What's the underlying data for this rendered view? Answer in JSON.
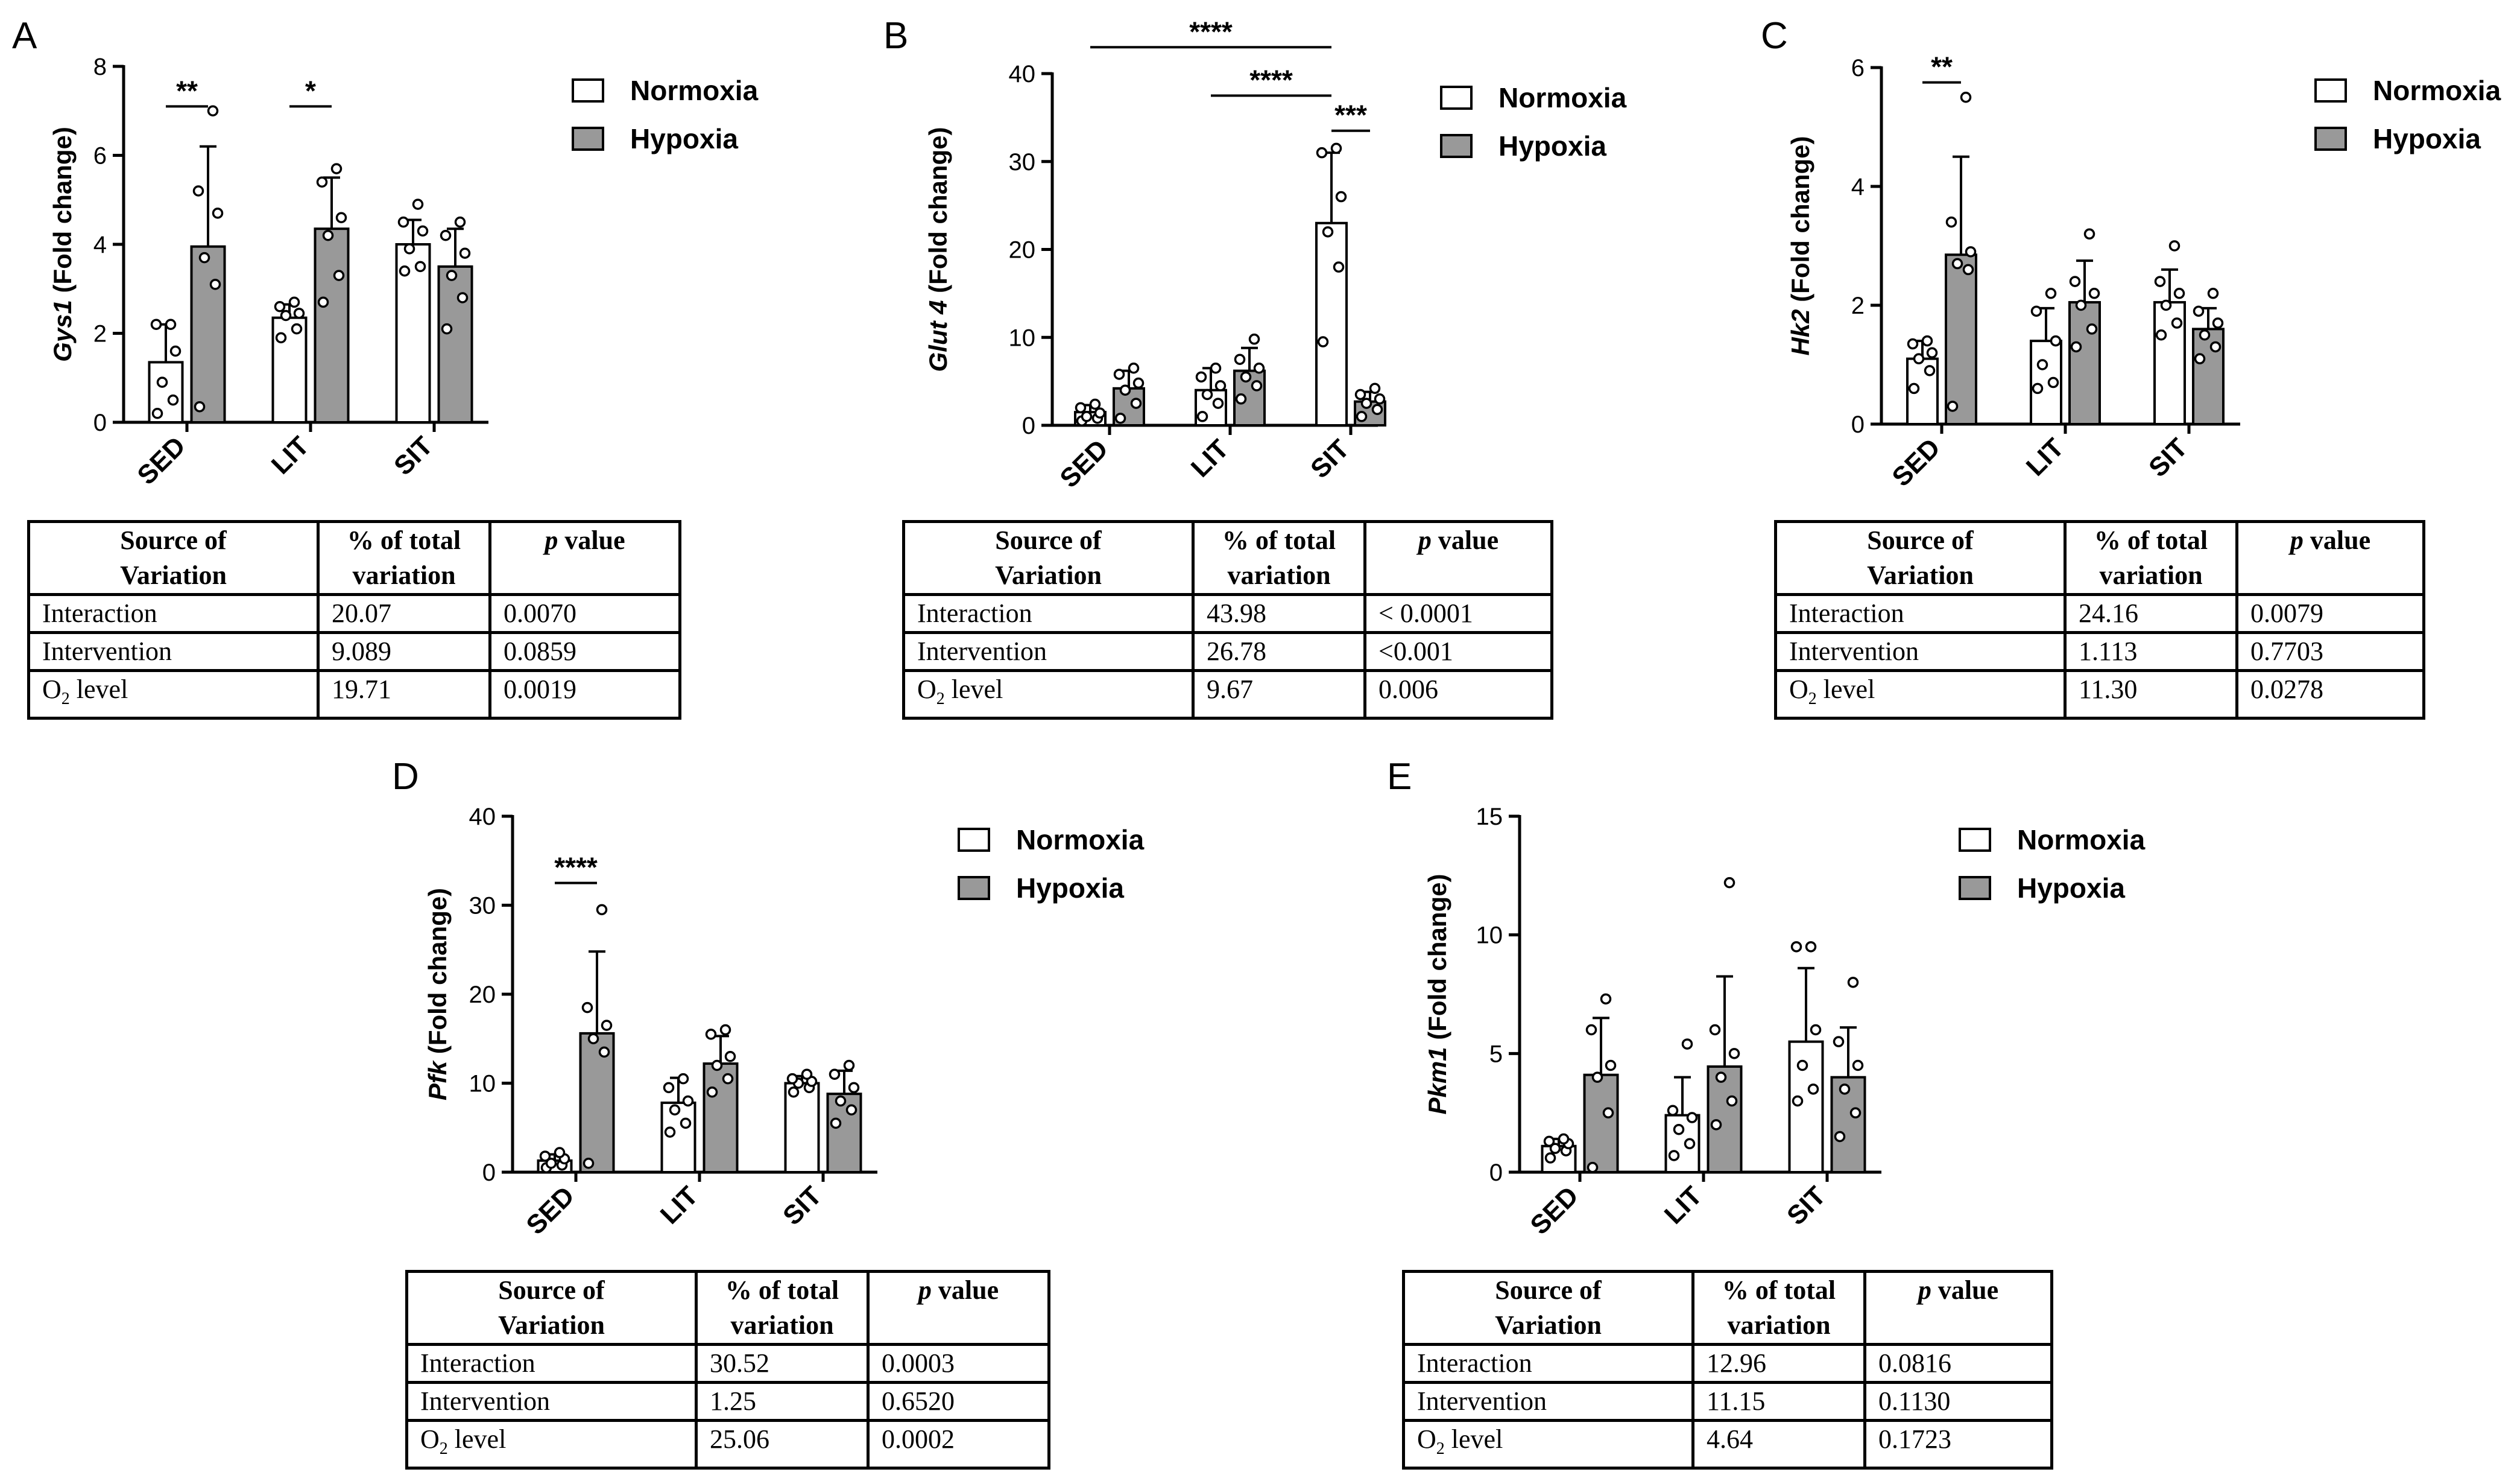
{
  "colors": {
    "normoxia": "#ffffff",
    "hypoxia": "#999999"
  },
  "legend": {
    "normoxia": "Normoxia",
    "hypoxia": "Hypoxia"
  },
  "table_header": {
    "source_a": "Source  of",
    "source_b": "Variation",
    "pct_a": "% of total",
    "pct_b": "variation",
    "p_italic": "p",
    "p_rest": " value"
  },
  "chart_data": [
    {
      "id": "A",
      "letter": "A",
      "type": "bar",
      "gene": "Gys1",
      "ylabel_rest": " (Fold change)",
      "ylim": [
        0,
        8
      ],
      "yticks": [
        0,
        2,
        4,
        6,
        8
      ],
      "categories": [
        "SED",
        "LIT",
        "SIT"
      ],
      "series": [
        {
          "name": "Normoxia",
          "values": [
            1.35,
            2.35,
            4.0
          ],
          "sd": [
            0.85,
            0.3,
            0.55
          ],
          "points": [
            [
              0.2,
              0.5,
              0.9,
              1.6,
              2.2,
              2.2
            ],
            [
              1.9,
              2.1,
              2.4,
              2.45,
              2.6,
              2.7
            ],
            [
              3.4,
              3.5,
              3.9,
              4.3,
              4.5,
              4.9
            ]
          ]
        },
        {
          "name": "Hypoxia",
          "values": [
            3.95,
            4.35,
            3.5
          ],
          "sd": [
            2.25,
            1.15,
            0.85
          ],
          "points": [
            [
              0.35,
              3.1,
              3.7,
              4.7,
              5.2,
              7.0
            ],
            [
              2.7,
              3.3,
              4.2,
              4.6,
              5.4,
              5.7
            ],
            [
              2.1,
              2.8,
              3.3,
              3.8,
              4.2,
              4.5
            ]
          ]
        }
      ],
      "significance": [
        {
          "label": "**",
          "from": "SED-Normoxia",
          "to": "SED-Hypoxia",
          "y": 7.1
        },
        {
          "label": "*",
          "from": "LIT-Normoxia",
          "to": "LIT-Hypoxia",
          "y": 7.1
        }
      ],
      "table": [
        {
          "source": "Interaction",
          "pct": "20.07",
          "p": "0.0070"
        },
        {
          "source": "Intervention",
          "pct": "9.089",
          "p": "0.0859"
        },
        {
          "source": "O2 level",
          "pct": "19.71",
          "p": "0.0019"
        }
      ]
    },
    {
      "id": "B",
      "letter": "B",
      "type": "bar",
      "gene": "Glut 4",
      "ylabel_rest": " (Fold change)",
      "ylim": [
        0,
        40
      ],
      "yticks": [
        0,
        10,
        20,
        30,
        40
      ],
      "categories": [
        "SED",
        "LIT",
        "SIT"
      ],
      "series": [
        {
          "name": "Normoxia",
          "values": [
            1.5,
            4.0,
            23.0
          ],
          "sd": [
            0.8,
            2.5,
            8.0
          ],
          "points": [
            [
              0.5,
              0.8,
              1.0,
              1.4,
              2.0,
              2.4
            ],
            [
              1.0,
              2.5,
              3.5,
              4.5,
              5.5,
              6.5
            ],
            [
              9.5,
              18.0,
              22.0,
              26.0,
              31.0,
              31.5
            ]
          ]
        },
        {
          "name": "Hypoxia",
          "values": [
            4.2,
            6.2,
            2.7
          ],
          "sd": [
            2.0,
            2.6,
            1.1
          ],
          "points": [
            [
              0.8,
              2.5,
              4.0,
              4.8,
              5.8,
              6.5
            ],
            [
              3.0,
              4.5,
              5.5,
              6.5,
              7.5,
              9.8
            ],
            [
              1.0,
              1.8,
              2.5,
              3.0,
              3.5,
              4.2
            ]
          ]
        }
      ],
      "significance": [
        {
          "label": "****",
          "from": "SED-Normoxia",
          "to": "SIT-Normoxia",
          "y": 43.0
        },
        {
          "label": "****",
          "from": "LIT-Normoxia",
          "to": "SIT-Normoxia",
          "y": 37.5
        },
        {
          "label": "***",
          "from": "SIT-Normoxia",
          "to": "SIT-Hypoxia",
          "y": 33.5
        }
      ],
      "table": [
        {
          "source": "Interaction",
          "pct": "43.98",
          "p": "< 0.0001"
        },
        {
          "source": "Intervention",
          "pct": "26.78",
          "p": "<0.001"
        },
        {
          "source": "O2 level",
          "pct": "9.67",
          "p": "0.006"
        }
      ]
    },
    {
      "id": "C",
      "letter": "C",
      "type": "bar",
      "gene": "Hk2",
      "ylabel_rest": " (Fold change)",
      "ylim": [
        0,
        6
      ],
      "yticks": [
        0,
        2,
        4,
        6
      ],
      "categories": [
        "SED",
        "LIT",
        "SIT"
      ],
      "series": [
        {
          "name": "Normoxia",
          "values": [
            1.1,
            1.4,
            2.05
          ],
          "sd": [
            0.3,
            0.55,
            0.55
          ],
          "points": [
            [
              0.6,
              0.9,
              1.1,
              1.2,
              1.35,
              1.4
            ],
            [
              0.6,
              0.7,
              1.0,
              1.4,
              1.9,
              2.2
            ],
            [
              1.5,
              1.7,
              2.0,
              2.2,
              2.4,
              3.0
            ]
          ]
        },
        {
          "name": "Hypoxia",
          "values": [
            2.85,
            2.05,
            1.6
          ],
          "sd": [
            1.65,
            0.7,
            0.35
          ],
          "points": [
            [
              0.3,
              2.6,
              2.7,
              2.9,
              3.4,
              5.5
            ],
            [
              1.3,
              1.6,
              2.0,
              2.2,
              2.4,
              3.2
            ],
            [
              1.1,
              1.3,
              1.5,
              1.7,
              1.9,
              2.2
            ]
          ]
        }
      ],
      "significance": [
        {
          "label": "**",
          "from": "SED-Normoxia",
          "to": "SED-Hypoxia",
          "y": 5.75
        }
      ],
      "table": [
        {
          "source": "Interaction",
          "pct": "24.16",
          "p": "0.0079"
        },
        {
          "source": "Intervention",
          "pct": "1.113",
          "p": "0.7703"
        },
        {
          "source": "O2 level",
          "pct": "11.30",
          "p": "0.0278"
        }
      ]
    },
    {
      "id": "D",
      "letter": "D",
      "type": "bar",
      "gene": "Pfk",
      "ylabel_rest": " (Fold change)",
      "ylim": [
        0,
        40
      ],
      "yticks": [
        0,
        10,
        20,
        30,
        40
      ],
      "categories": [
        "SED",
        "LIT",
        "SIT"
      ],
      "series": [
        {
          "name": "Normoxia",
          "values": [
            1.3,
            7.8,
            10.0
          ],
          "sd": [
            0.7,
            2.8,
            0.8
          ],
          "points": [
            [
              0.5,
              0.8,
              1.0,
              1.5,
              1.8,
              2.2
            ],
            [
              4.5,
              5.5,
              7.0,
              8.0,
              9.5,
              10.5
            ],
            [
              9.0,
              9.5,
              10.0,
              10.2,
              10.5,
              11.0
            ]
          ]
        },
        {
          "name": "Hypoxia",
          "values": [
            15.6,
            12.2,
            8.8
          ],
          "sd": [
            9.2,
            3.1,
            2.6
          ],
          "points": [
            [
              1.0,
              13.5,
              15.0,
              16.5,
              18.5,
              29.5
            ],
            [
              9.0,
              10.5,
              12.0,
              13.0,
              15.5,
              16.0
            ],
            [
              5.5,
              7.0,
              8.0,
              9.5,
              11.0,
              12.0
            ]
          ]
        }
      ],
      "significance": [
        {
          "label": "****",
          "from": "SED-Normoxia",
          "to": "SED-Hypoxia",
          "y": 32.5
        }
      ],
      "table": [
        {
          "source": "Interaction",
          "pct": "30.52",
          "p": "0.0003"
        },
        {
          "source": "Intervention",
          "pct": "1.25",
          "p": "0.6520"
        },
        {
          "source": "O2 level",
          "pct": "25.06",
          "p": "0.0002"
        }
      ]
    },
    {
      "id": "E",
      "letter": "E",
      "type": "bar",
      "gene": "Pkm1",
      "ylabel_rest": " (Fold change)",
      "ylim": [
        0,
        15
      ],
      "yticks": [
        0,
        5,
        10,
        15
      ],
      "categories": [
        "SED",
        "LIT",
        "SIT"
      ],
      "series": [
        {
          "name": "Normoxia",
          "values": [
            1.1,
            2.4,
            5.5
          ],
          "sd": [
            0.3,
            1.6,
            3.1
          ],
          "points": [
            [
              0.6,
              0.9,
              1.0,
              1.2,
              1.3,
              1.4
            ],
            [
              0.7,
              1.2,
              1.8,
              2.3,
              2.6,
              5.4
            ],
            [
              3.0,
              3.5,
              4.5,
              6.0,
              9.5,
              9.5
            ]
          ]
        },
        {
          "name": "Hypoxia",
          "values": [
            4.1,
            4.45,
            4.0
          ],
          "sd": [
            2.4,
            3.8,
            2.1
          ],
          "points": [
            [
              0.2,
              2.5,
              4.0,
              4.5,
              6.0,
              7.3
            ],
            [
              2.0,
              3.0,
              4.0,
              5.0,
              6.0,
              12.2
            ],
            [
              1.5,
              2.5,
              3.5,
              4.5,
              5.5,
              8.0
            ]
          ]
        }
      ],
      "significance": [],
      "table": [
        {
          "source": "Interaction",
          "pct": "12.96",
          "p": "0.0816"
        },
        {
          "source": "Intervention",
          "pct": "11.15",
          "p": "0.1130"
        },
        {
          "source": "O2 level",
          "pct": "4.64",
          "p": "0.1723"
        }
      ]
    }
  ]
}
